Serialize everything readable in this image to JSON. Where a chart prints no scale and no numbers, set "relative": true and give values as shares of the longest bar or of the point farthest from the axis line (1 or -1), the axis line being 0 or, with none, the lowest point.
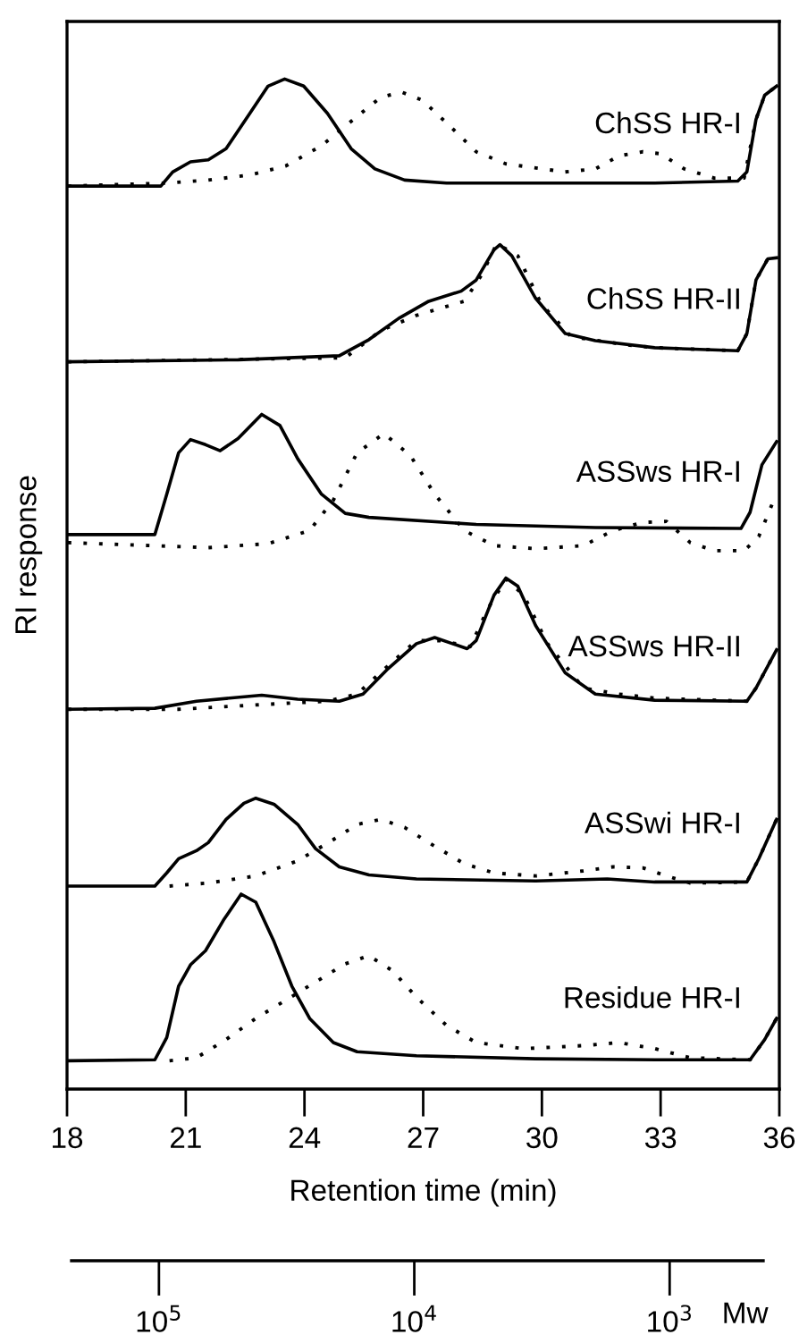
{
  "chart_data": {
    "type": "line",
    "relative": true,
    "xlabel": "Retention time (min)",
    "ylabel": "RI response",
    "xlim": [
      18,
      36
    ],
    "xticks": [
      18,
      21,
      24,
      27,
      30,
      33,
      36
    ],
    "x2lim": [
      220000,
      430
    ],
    "x2ticks": [
      {
        "value": 100000,
        "label": "10$^{5}$"
      },
      {
        "value": 10000,
        "label": "10$^{4}$"
      },
      {
        "value": 1000,
        "label": "10$^{3}$"
      }
    ],
    "x2label": "Mw",
    "log": "x2",
    "grid": false,
    "legend": false,
    "marker": "none",
    "series": [
      {
        "name": "ChSS HR-I",
        "color": "#000000",
        "line_style": "solid",
        "x": [
          18.02,
          20.37,
          20.67,
          21.12,
          21.57,
          22.02,
          22.62,
          23.08,
          23.5,
          23.98,
          24.58,
          25.18,
          25.78,
          26.53,
          27.59,
          29.84,
          32.85,
          34.95,
          35.18,
          35.41,
          35.63,
          35.93
        ],
        "values": [
          0.894,
          0.894,
          0.908,
          0.918,
          0.92,
          0.931,
          0.966,
          0.993,
          1.0,
          0.993,
          0.966,
          0.931,
          0.911,
          0.9,
          0.897,
          0.897,
          0.897,
          0.899,
          0.908,
          0.96,
          0.984,
          0.993
        ]
      },
      {
        "color": "#000000",
        "line_style": "dotted",
        "x": [
          18.02,
          20.52,
          21.57,
          22.62,
          23.53,
          24.43,
          25.33,
          25.93,
          26.46,
          26.98,
          27.74,
          28.34,
          29.09,
          30.59,
          31.35,
          31.95,
          32.55,
          33.0,
          33.6,
          34.35,
          35.11,
          35.41,
          35.63,
          35.93
        ],
        "values": [
          0.894,
          0.897,
          0.9,
          0.905,
          0.914,
          0.934,
          0.963,
          0.982,
          0.987,
          0.979,
          0.951,
          0.928,
          0.916,
          0.908,
          0.911,
          0.924,
          0.928,
          0.926,
          0.911,
          0.902,
          0.902,
          0.96,
          0.984,
          0.993
        ]
      },
      {
        "name": "ChSS HR-II",
        "color": "#000000",
        "line_style": "solid",
        "x": [
          18.02,
          22.32,
          24.88,
          25.63,
          26.38,
          27.14,
          27.96,
          28.34,
          28.79,
          28.94,
          29.24,
          29.84,
          30.59,
          31.35,
          32.85,
          34.95,
          35.18,
          35.41,
          35.71,
          35.93
        ],
        "values": [
          0.72,
          0.722,
          0.726,
          0.742,
          0.763,
          0.78,
          0.79,
          0.801,
          0.831,
          0.836,
          0.825,
          0.783,
          0.748,
          0.741,
          0.734,
          0.731,
          0.748,
          0.801,
          0.822,
          0.823
        ]
      },
      {
        "color": "#000000",
        "line_style": "dotted",
        "x": [
          18.02,
          25.03,
          25.93,
          26.83,
          28.04,
          28.49,
          28.86,
          29.39,
          29.99,
          30.74,
          32.1,
          32.85,
          34.95,
          35.18,
          35.41,
          35.71,
          35.93
        ],
        "values": [
          0.72,
          0.724,
          0.751,
          0.766,
          0.78,
          0.807,
          0.837,
          0.825,
          0.777,
          0.745,
          0.737,
          0.734,
          0.731,
          0.748,
          0.801,
          0.822,
          0.823
        ]
      },
      {
        "name": "ASSws HR-I",
        "color": "#000000",
        "line_style": "solid",
        "x": [
          18.02,
          20.22,
          20.52,
          20.82,
          21.12,
          21.5,
          21.87,
          22.32,
          22.92,
          23.38,
          23.83,
          24.43,
          25.03,
          25.63,
          28.34,
          31.35,
          35.03,
          35.26,
          35.56,
          35.93
        ],
        "values": [
          0.549,
          0.549,
          0.589,
          0.63,
          0.643,
          0.638,
          0.632,
          0.644,
          0.668,
          0.657,
          0.624,
          0.589,
          0.57,
          0.566,
          0.559,
          0.556,
          0.555,
          0.571,
          0.618,
          0.641
        ]
      },
      {
        "color": "#000000",
        "line_style": "dotted",
        "x": [
          18.02,
          21.57,
          23.08,
          24.13,
          24.73,
          25.33,
          26.01,
          26.68,
          27.29,
          28.04,
          28.79,
          29.84,
          31.05,
          31.8,
          32.55,
          33.15,
          33.75,
          34.35,
          35.11,
          35.48,
          35.86
        ],
        "values": [
          0.541,
          0.536,
          0.54,
          0.553,
          0.583,
          0.63,
          0.649,
          0.627,
          0.589,
          0.553,
          0.538,
          0.535,
          0.538,
          0.553,
          0.561,
          0.562,
          0.541,
          0.533,
          0.533,
          0.547,
          0.583
        ]
      },
      {
        "name": "ASSws HR-II",
        "color": "#000000",
        "line_style": "solid",
        "x": [
          18.02,
          20.22,
          21.27,
          22.92,
          23.83,
          24.88,
          25.48,
          26.08,
          26.83,
          27.29,
          27.74,
          28.11,
          28.34,
          28.79,
          29.09,
          29.39,
          29.84,
          30.59,
          31.35,
          32.85,
          35.18,
          35.41,
          35.93
        ],
        "values": [
          0.376,
          0.377,
          0.384,
          0.39,
          0.386,
          0.384,
          0.391,
          0.415,
          0.441,
          0.447,
          0.441,
          0.436,
          0.444,
          0.489,
          0.506,
          0.498,
          0.459,
          0.412,
          0.391,
          0.385,
          0.384,
          0.397,
          0.435
        ]
      },
      {
        "color": "#000000",
        "line_style": "dotted",
        "x": [
          18.02,
          20.82,
          23.08,
          24.58,
          25.33,
          26.08,
          26.83,
          27.44,
          28.19,
          28.64,
          29.09,
          29.54,
          30.14,
          31.05,
          31.95,
          32.85,
          35.18,
          35.41,
          35.93
        ],
        "values": [
          0.376,
          0.376,
          0.381,
          0.384,
          0.391,
          0.418,
          0.444,
          0.444,
          0.438,
          0.476,
          0.505,
          0.489,
          0.441,
          0.397,
          0.391,
          0.387,
          0.384,
          0.397,
          0.435
        ]
      },
      {
        "name": "ASSwi HR-I",
        "color": "#000000",
        "line_style": "solid",
        "x": [
          18.02,
          20.22,
          20.52,
          20.82,
          21.27,
          21.57,
          22.02,
          22.47,
          22.77,
          23.23,
          23.83,
          24.28,
          24.88,
          25.63,
          26.83,
          29.84,
          31.65,
          32.85,
          35.18,
          35.48,
          35.93
        ],
        "values": [
          0.201,
          0.201,
          0.214,
          0.228,
          0.236,
          0.244,
          0.267,
          0.283,
          0.288,
          0.282,
          0.262,
          0.238,
          0.22,
          0.212,
          0.208,
          0.206,
          0.208,
          0.205,
          0.205,
          0.228,
          0.267
        ]
      },
      {
        "color": "#000000",
        "line_style": "dotted",
        "x": [
          20.59,
          21.57,
          22.77,
          23.83,
          24.73,
          25.33,
          25.93,
          26.53,
          27.14,
          28.04,
          28.79,
          29.84,
          31.05,
          31.8,
          32.55,
          33.15,
          33.75,
          35.18,
          35.48,
          35.93
        ],
        "values": [
          0.201,
          0.204,
          0.211,
          0.226,
          0.247,
          0.262,
          0.267,
          0.259,
          0.244,
          0.223,
          0.214,
          0.211,
          0.216,
          0.22,
          0.219,
          0.211,
          0.204,
          0.205,
          0.228,
          0.267
        ]
      },
      {
        "name": "Residue HR-I",
        "color": "#000000",
        "line_style": "solid",
        "x": [
          18.02,
          20.22,
          20.52,
          20.82,
          21.12,
          21.5,
          21.95,
          22.4,
          22.77,
          23.23,
          23.68,
          24.13,
          24.73,
          25.33,
          26.83,
          29.84,
          32.85,
          35.26,
          35.63,
          35.93
        ],
        "values": [
          0.028,
          0.029,
          0.051,
          0.102,
          0.123,
          0.137,
          0.167,
          0.193,
          0.185,
          0.146,
          0.102,
          0.07,
          0.046,
          0.037,
          0.033,
          0.03,
          0.029,
          0.029,
          0.049,
          0.07
        ]
      },
      {
        "color": "#000000",
        "line_style": "dotted",
        "x": [
          20.59,
          21.27,
          22.02,
          22.77,
          23.53,
          24.28,
          25.03,
          25.63,
          26.23,
          26.83,
          27.59,
          28.34,
          29.54,
          31.05,
          31.95,
          32.85,
          33.75,
          35.26,
          35.63,
          35.93
        ],
        "values": [
          0.028,
          0.031,
          0.049,
          0.07,
          0.088,
          0.106,
          0.124,
          0.132,
          0.117,
          0.091,
          0.063,
          0.046,
          0.04,
          0.043,
          0.046,
          0.04,
          0.031,
          0.029,
          0.049,
          0.07
        ]
      }
    ]
  }
}
